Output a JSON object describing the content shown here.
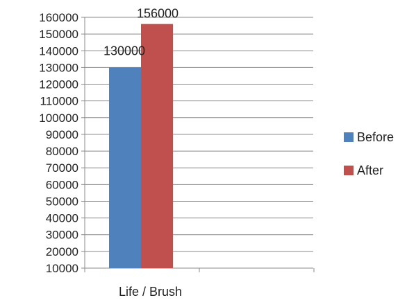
{
  "chart_data": {
    "type": "bar",
    "categories": [
      "Life / Brush"
    ],
    "series": [
      {
        "name": "Before",
        "values": [
          130000
        ],
        "color": "#4f81bd"
      },
      {
        "name": "After",
        "values": [
          156000
        ],
        "color": "#c0504d"
      }
    ],
    "data_labels": [
      "130000",
      "156000"
    ],
    "ylim": [
      10000,
      160000
    ],
    "y_ticks": [
      "160000",
      "150000",
      "140000",
      "130000",
      "120000",
      "110000",
      "100000",
      "90000",
      "80000",
      "70000",
      "60000",
      "50000",
      "40000",
      "30000",
      "20000",
      "10000"
    ],
    "grid": true,
    "legend_position": "right",
    "title": "",
    "xlabel": "",
    "ylabel": ""
  }
}
